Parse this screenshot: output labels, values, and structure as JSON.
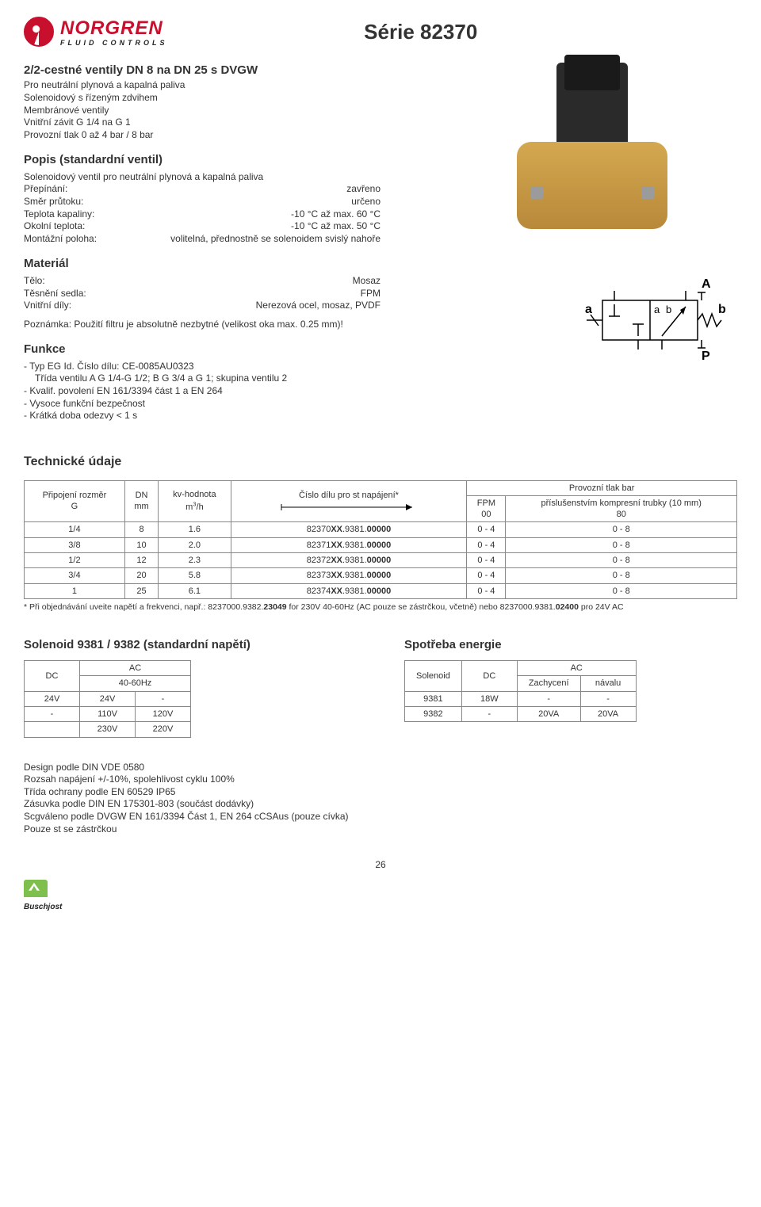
{
  "header": {
    "logo_name": "NORGREN",
    "logo_sub": "FLUID CONTROLS",
    "series_title": "Série 82370"
  },
  "intro": {
    "title": "2/2-cestné ventily DN 8 na DN 25 s DVGW",
    "lines": [
      "Pro neutrální plynová a kapalná paliva",
      "Solenoidový s řízeným zdvihem",
      "Membránové ventily",
      "Vnitřní závit G 1/4 na G 1",
      "Provozní tlak 0 až 4 bar / 8 bar"
    ]
  },
  "popis": {
    "title": "Popis (standardní ventil)",
    "subtitle": "Solenoidový ventil pro neutrální plynová a kapalná paliva",
    "rows": [
      {
        "label": "Přepínání:",
        "value": "zavřeno"
      },
      {
        "label": "Směr průtoku:",
        "value": "určeno"
      },
      {
        "label": "Teplota kapaliny:",
        "value": "-10 °C až max. 60 °C"
      },
      {
        "label": "Okolní teplota:",
        "value": "-10 °C až max. 50 °C"
      },
      {
        "label": "Montážní poloha:",
        "value": "volitelná, přednostně se solenoidem svislý nahoře"
      }
    ]
  },
  "material": {
    "title": "Materiál",
    "rows": [
      {
        "label": "Tělo:",
        "value": "Mosaz"
      },
      {
        "label": "Těsnění sedla:",
        "value": "FPM"
      },
      {
        "label": "Vnitřní díly:",
        "value": "Nerezová ocel, mosaz, PVDF"
      }
    ],
    "note": "Poznámka: Použití filtru je absolutně nezbytné (velikost oka max. 0.25 mm)!"
  },
  "funkce": {
    "title": "Funkce",
    "items": [
      {
        "text": "Typ EG Id. Číslo dílu: CE-0085AU0323",
        "indent": false
      },
      {
        "text": "Třída ventilu A G 1/4-G 1/2; B G 3/4 a G 1; skupina ventilu 2",
        "indent": true
      },
      {
        "text": "Kvalif. povolení EN 161/3394 část 1 a EN 264",
        "indent": false
      },
      {
        "text": "Vysoce funkční bezpečnost",
        "indent": false
      },
      {
        "text": "Krátká doba odezvy < 1 s",
        "indent": false
      }
    ]
  },
  "schematic_labels": {
    "A": "A",
    "P": "P",
    "a_outer": "a",
    "b_outer": "b",
    "a_inner": "a",
    "b_inner": "b"
  },
  "tech": {
    "title": "Technické údaje",
    "header_top": "Provozní tlak bar",
    "columns": {
      "c1a": "Připojení rozměr",
      "c1b": "G",
      "c2a": "DN",
      "c2b": "mm",
      "c3a": "kv-hodnota",
      "c3b": "m³/h",
      "c4a": "Číslo dílu pro st napájení*",
      "c5a": "FPM",
      "c5b": "00",
      "c6a": "příslušenstvím kompresní trubky (10 mm)",
      "c6b": "80"
    },
    "rows": [
      {
        "g": "1/4",
        "dn": "8",
        "kv": "1.6",
        "part_pre": "82370",
        "part_mid": "XX",
        "part_post": ".9381.",
        "part_end": "00000",
        "fpm": "0 - 4",
        "acc": "0 - 8"
      },
      {
        "g": "3/8",
        "dn": "10",
        "kv": "2.0",
        "part_pre": "82371",
        "part_mid": "XX",
        "part_post": ".9381.",
        "part_end": "00000",
        "fpm": "0 - 4",
        "acc": "0 - 8"
      },
      {
        "g": "1/2",
        "dn": "12",
        "kv": "2.3",
        "part_pre": "82372",
        "part_mid": "XX",
        "part_post": ".9381.",
        "part_end": "00000",
        "fpm": "0 - 4",
        "acc": "0 - 8"
      },
      {
        "g": "3/4",
        "dn": "20",
        "kv": "5.8",
        "part_pre": "82373",
        "part_mid": "XX",
        "part_post": ".9381.",
        "part_end": "00000",
        "fpm": "0 - 4",
        "acc": "0 - 8"
      },
      {
        "g": "1",
        "dn": "25",
        "kv": "6.1",
        "part_pre": "82374",
        "part_mid": "XX",
        "part_post": ".9381.",
        "part_end": "00000",
        "fpm": "0 - 4",
        "acc": "0 - 8"
      }
    ],
    "footnote_pre": "* Při objednávání uveite napětí a frekvenci, např.: 8237000.9382.",
    "footnote_bold1": "23049",
    "footnote_mid": " for 230V 40-60Hz (AC pouze se zástrčkou, včetně) nebo 8237000.9381.",
    "footnote_bold2": "02400",
    "footnote_end": " pro 24V AC"
  },
  "solenoid": {
    "title": "Solenoid 9381 / 9382 (standardní napětí)",
    "head": {
      "dc": "DC",
      "ac": "AC",
      "hz": "40-60Hz"
    },
    "rows": [
      {
        "dc": "24V",
        "ac1": "24V",
        "ac2": "-"
      },
      {
        "dc": "-",
        "ac1": "110V",
        "ac2": "120V"
      },
      {
        "dc": "",
        "ac1": "230V",
        "ac2": "220V"
      }
    ]
  },
  "energy": {
    "title": "Spotřeba energie",
    "head": {
      "sol": "Solenoid",
      "dc": "DC",
      "ac": "AC",
      "z": "Zachycení",
      "n": "návalu"
    },
    "rows": [
      {
        "s": "9381",
        "dc": "18W",
        "z": "-",
        "n": "-"
      },
      {
        "s": "9382",
        "dc": "-",
        "z": "20VA",
        "n": "20VA"
      }
    ]
  },
  "footer_notes": [
    "Design podle DIN VDE 0580",
    "Rozsah napájení +/-10%, spolehlivost cyklu 100%",
    "Třída ochrany podle EN 60529 IP65",
    "Zásuvka podle DIN EN 175301-803 (součást dodávky)",
    "Scgváleno podle DVGW EN 161/3394 Část 1, EN 264 cCSAus (pouze cívka)",
    "Pouze st se zástrčkou"
  ],
  "page_num": "26",
  "buschjost": "Buschjost",
  "colors": {
    "brand_red": "#c8102e",
    "valve_brass": "#d4a850",
    "text": "#333333",
    "border": "#888888"
  }
}
